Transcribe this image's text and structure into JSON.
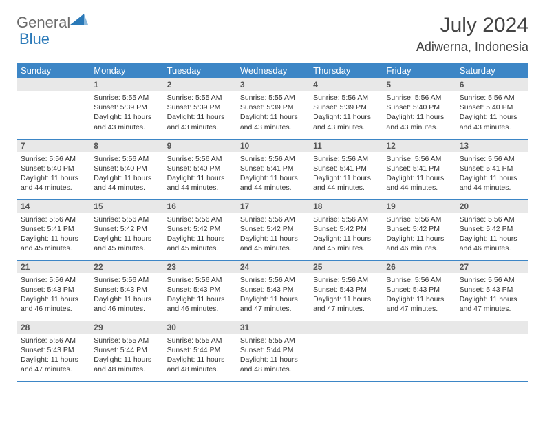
{
  "brand": {
    "part1": "General",
    "part2": "Blue"
  },
  "title": "July 2024",
  "location": "Adiwerna, Indonesia",
  "colors": {
    "header_bg": "#3d86c6",
    "header_text": "#ffffff",
    "daynum_bg": "#e8e8e8",
    "border": "#3d86c6",
    "brand_gray": "#6b6b6b",
    "brand_blue": "#2a79b8"
  },
  "days_of_week": [
    "Sunday",
    "Monday",
    "Tuesday",
    "Wednesday",
    "Thursday",
    "Friday",
    "Saturday"
  ],
  "first_weekday_index": 1,
  "days": [
    {
      "n": 1,
      "sunrise": "5:55 AM",
      "sunset": "5:39 PM",
      "daylight": "11 hours and 43 minutes."
    },
    {
      "n": 2,
      "sunrise": "5:55 AM",
      "sunset": "5:39 PM",
      "daylight": "11 hours and 43 minutes."
    },
    {
      "n": 3,
      "sunrise": "5:55 AM",
      "sunset": "5:39 PM",
      "daylight": "11 hours and 43 minutes."
    },
    {
      "n": 4,
      "sunrise": "5:56 AM",
      "sunset": "5:39 PM",
      "daylight": "11 hours and 43 minutes."
    },
    {
      "n": 5,
      "sunrise": "5:56 AM",
      "sunset": "5:40 PM",
      "daylight": "11 hours and 43 minutes."
    },
    {
      "n": 6,
      "sunrise": "5:56 AM",
      "sunset": "5:40 PM",
      "daylight": "11 hours and 43 minutes."
    },
    {
      "n": 7,
      "sunrise": "5:56 AM",
      "sunset": "5:40 PM",
      "daylight": "11 hours and 44 minutes."
    },
    {
      "n": 8,
      "sunrise": "5:56 AM",
      "sunset": "5:40 PM",
      "daylight": "11 hours and 44 minutes."
    },
    {
      "n": 9,
      "sunrise": "5:56 AM",
      "sunset": "5:40 PM",
      "daylight": "11 hours and 44 minutes."
    },
    {
      "n": 10,
      "sunrise": "5:56 AM",
      "sunset": "5:41 PM",
      "daylight": "11 hours and 44 minutes."
    },
    {
      "n": 11,
      "sunrise": "5:56 AM",
      "sunset": "5:41 PM",
      "daylight": "11 hours and 44 minutes."
    },
    {
      "n": 12,
      "sunrise": "5:56 AM",
      "sunset": "5:41 PM",
      "daylight": "11 hours and 44 minutes."
    },
    {
      "n": 13,
      "sunrise": "5:56 AM",
      "sunset": "5:41 PM",
      "daylight": "11 hours and 44 minutes."
    },
    {
      "n": 14,
      "sunrise": "5:56 AM",
      "sunset": "5:41 PM",
      "daylight": "11 hours and 45 minutes."
    },
    {
      "n": 15,
      "sunrise": "5:56 AM",
      "sunset": "5:42 PM",
      "daylight": "11 hours and 45 minutes."
    },
    {
      "n": 16,
      "sunrise": "5:56 AM",
      "sunset": "5:42 PM",
      "daylight": "11 hours and 45 minutes."
    },
    {
      "n": 17,
      "sunrise": "5:56 AM",
      "sunset": "5:42 PM",
      "daylight": "11 hours and 45 minutes."
    },
    {
      "n": 18,
      "sunrise": "5:56 AM",
      "sunset": "5:42 PM",
      "daylight": "11 hours and 45 minutes."
    },
    {
      "n": 19,
      "sunrise": "5:56 AM",
      "sunset": "5:42 PM",
      "daylight": "11 hours and 46 minutes."
    },
    {
      "n": 20,
      "sunrise": "5:56 AM",
      "sunset": "5:42 PM",
      "daylight": "11 hours and 46 minutes."
    },
    {
      "n": 21,
      "sunrise": "5:56 AM",
      "sunset": "5:43 PM",
      "daylight": "11 hours and 46 minutes."
    },
    {
      "n": 22,
      "sunrise": "5:56 AM",
      "sunset": "5:43 PM",
      "daylight": "11 hours and 46 minutes."
    },
    {
      "n": 23,
      "sunrise": "5:56 AM",
      "sunset": "5:43 PM",
      "daylight": "11 hours and 46 minutes."
    },
    {
      "n": 24,
      "sunrise": "5:56 AM",
      "sunset": "5:43 PM",
      "daylight": "11 hours and 47 minutes."
    },
    {
      "n": 25,
      "sunrise": "5:56 AM",
      "sunset": "5:43 PM",
      "daylight": "11 hours and 47 minutes."
    },
    {
      "n": 26,
      "sunrise": "5:56 AM",
      "sunset": "5:43 PM",
      "daylight": "11 hours and 47 minutes."
    },
    {
      "n": 27,
      "sunrise": "5:56 AM",
      "sunset": "5:43 PM",
      "daylight": "11 hours and 47 minutes."
    },
    {
      "n": 28,
      "sunrise": "5:56 AM",
      "sunset": "5:43 PM",
      "daylight": "11 hours and 47 minutes."
    },
    {
      "n": 29,
      "sunrise": "5:55 AM",
      "sunset": "5:44 PM",
      "daylight": "11 hours and 48 minutes."
    },
    {
      "n": 30,
      "sunrise": "5:55 AM",
      "sunset": "5:44 PM",
      "daylight": "11 hours and 48 minutes."
    },
    {
      "n": 31,
      "sunrise": "5:55 AM",
      "sunset": "5:44 PM",
      "daylight": "11 hours and 48 minutes."
    }
  ],
  "labels": {
    "sunrise": "Sunrise:",
    "sunset": "Sunset:",
    "daylight": "Daylight:"
  }
}
